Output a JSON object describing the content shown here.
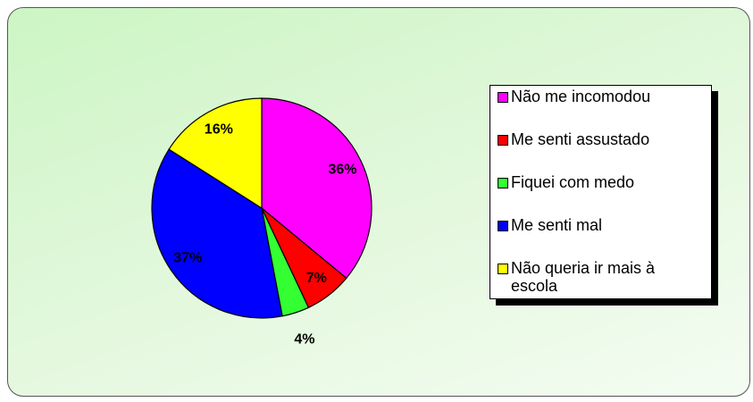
{
  "chart_data": {
    "type": "pie",
    "categories": [
      "Não me incomodou",
      "Me senti assustado",
      "Fiquei com medo",
      "Me senti mal",
      "Não queria ir mais à escola"
    ],
    "values": [
      36,
      7,
      4,
      37,
      16
    ],
    "value_labels": [
      "36%",
      "7%",
      "4%",
      "37%",
      "16%"
    ],
    "colors": [
      "#ff00ff",
      "#ff0000",
      "#33ff33",
      "#0000ff",
      "#ffff00"
    ],
    "legend": "right"
  }
}
